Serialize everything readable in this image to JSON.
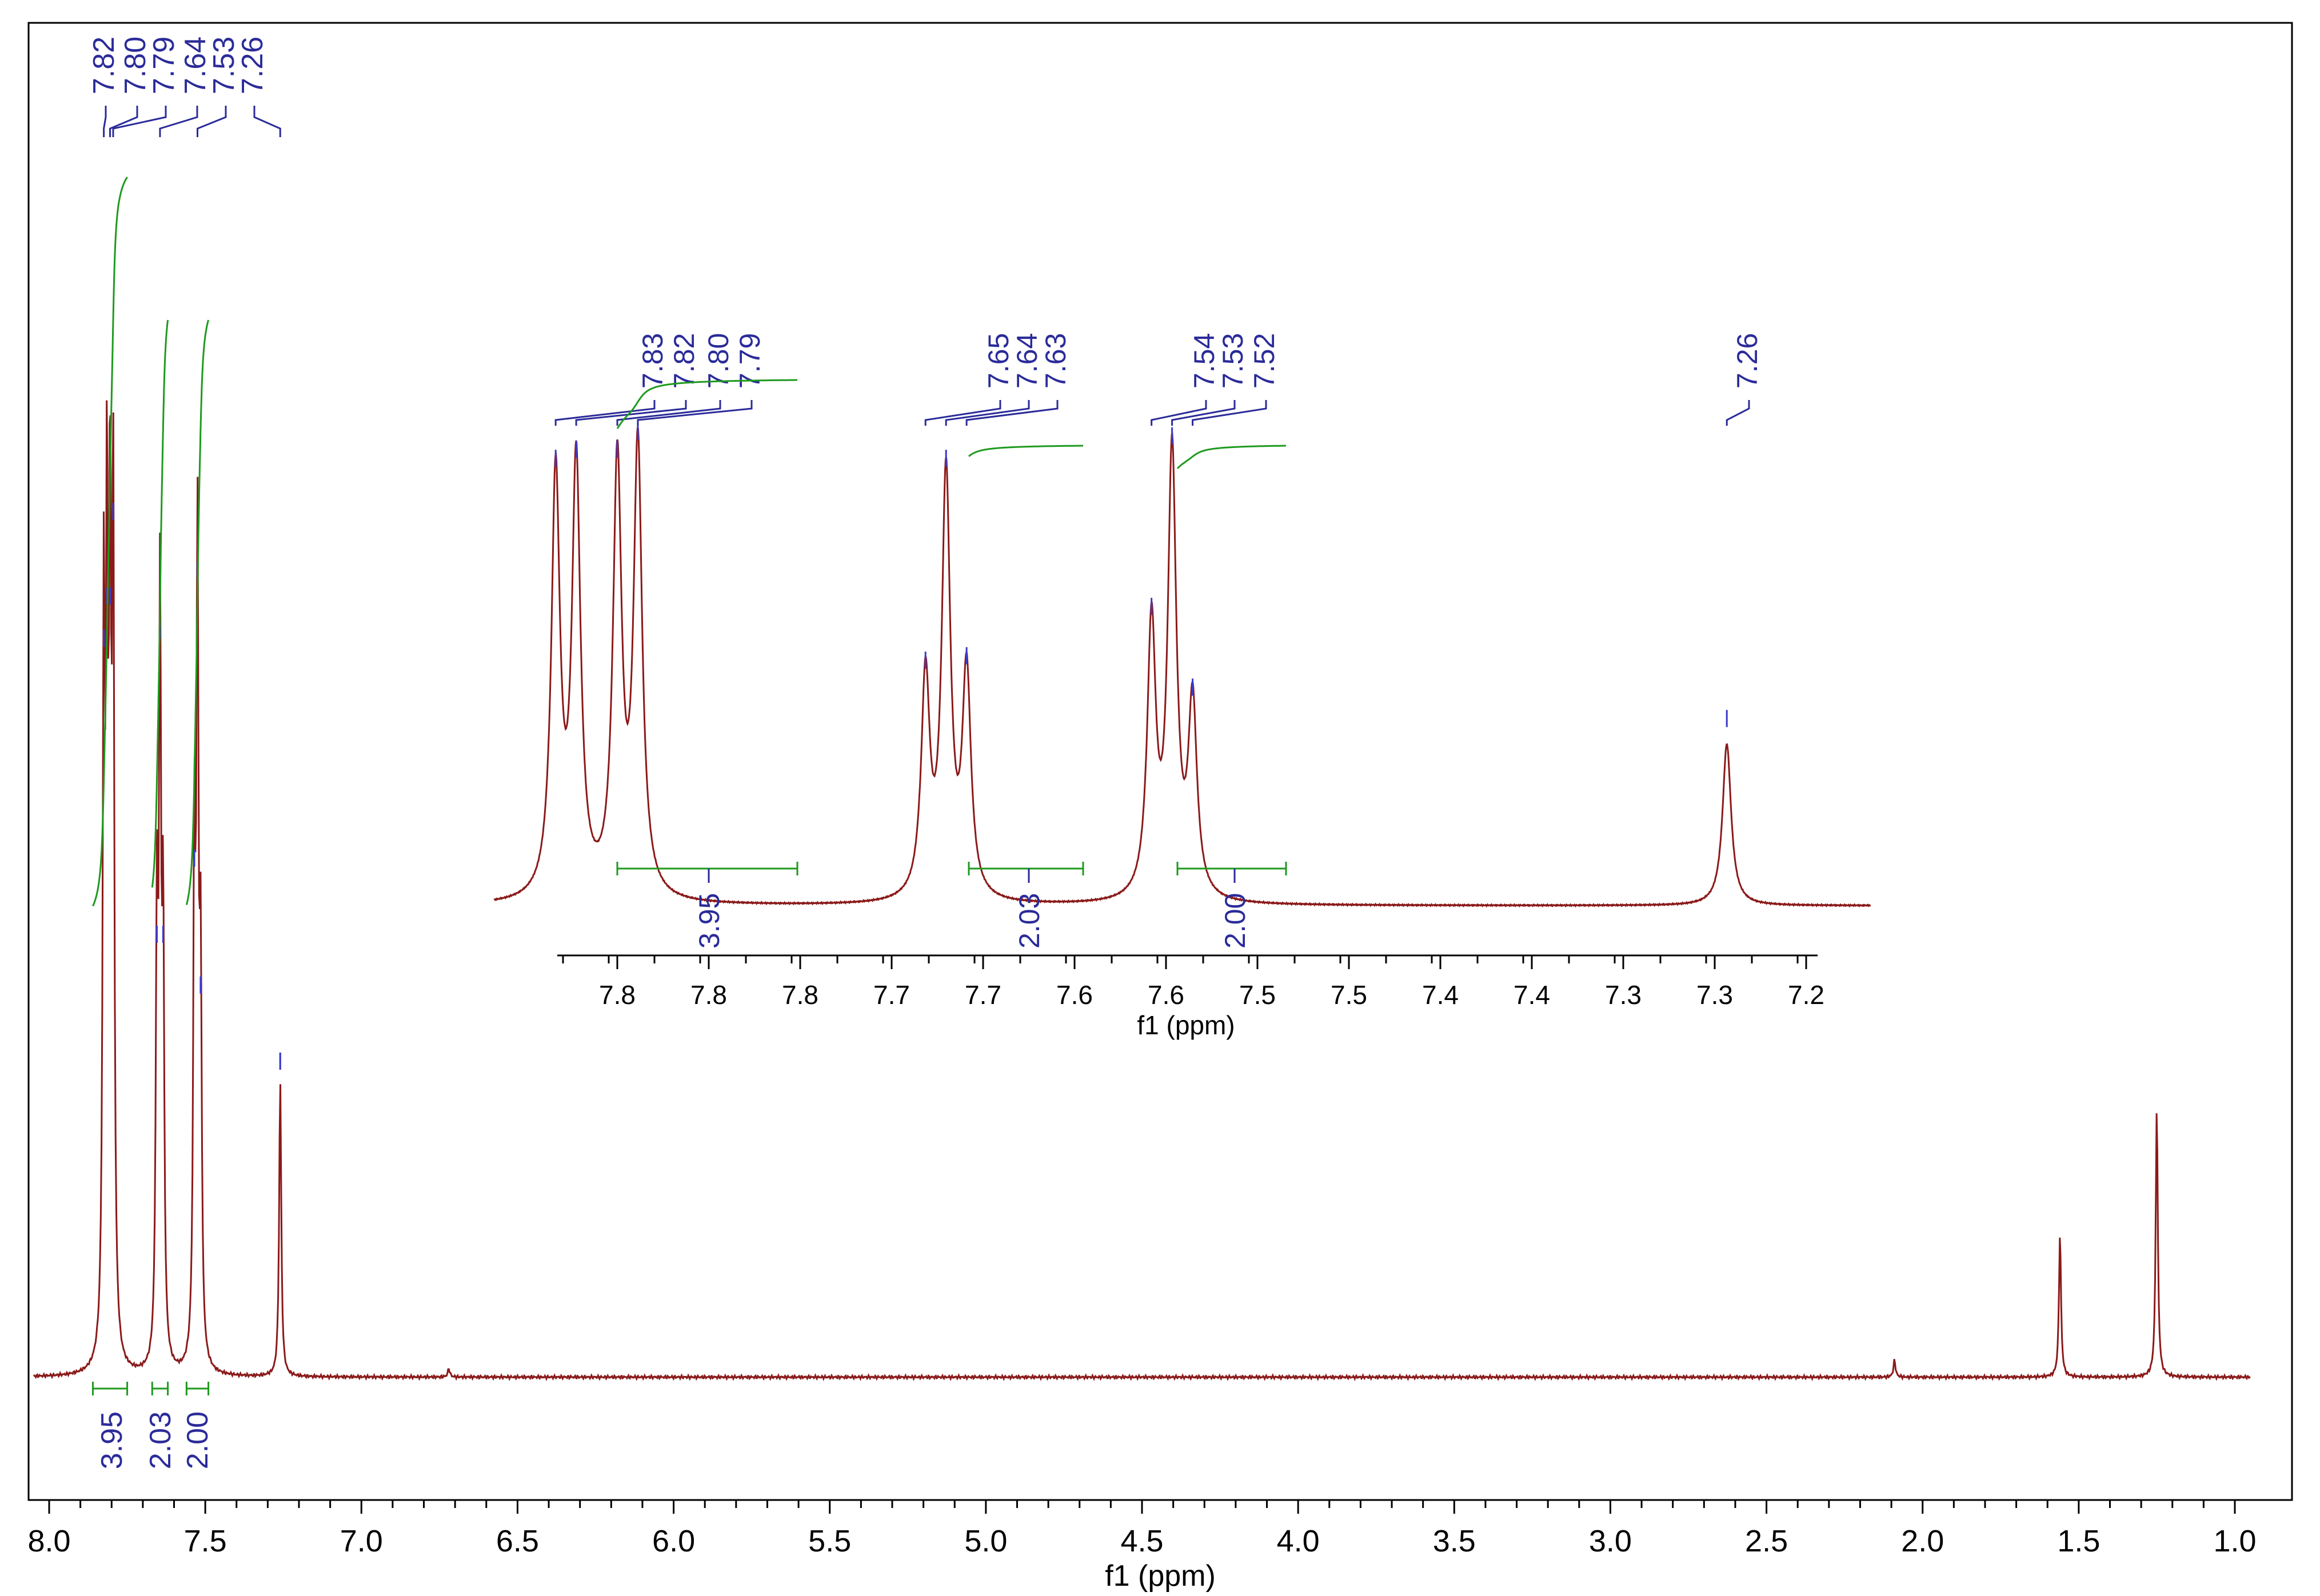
{
  "chart_data": [
    {
      "type": "line",
      "panel": "main",
      "xlabel": "f1 (ppm)",
      "xlim": [
        8.0,
        1.0
      ],
      "x_ticks": [
        "8.0",
        "7.5",
        "7.0",
        "6.5",
        "6.0",
        "5.5",
        "5.0",
        "4.5",
        "4.0",
        "3.5",
        "3.0",
        "2.5",
        "2.0",
        "1.5",
        "1.0"
      ],
      "series": [
        {
          "peaks": [
            {
              "x": 7.825,
              "y": 0.85
            },
            {
              "x": 7.815,
              "y": 0.9
            },
            {
              "x": 7.805,
              "y": 0.9
            },
            {
              "x": 7.795,
              "y": 1.0
            },
            {
              "x": 7.655,
              "y": 0.5
            },
            {
              "x": 7.645,
              "y": 0.86
            },
            {
              "x": 7.635,
              "y": 0.5
            },
            {
              "x": 7.535,
              "y": 0.59
            },
            {
              "x": 7.525,
              "y": 0.93
            },
            {
              "x": 7.515,
              "y": 0.44
            },
            {
              "x": 7.26,
              "y": 0.35
            },
            {
              "x": 6.72,
              "y": 0.01
            },
            {
              "x": 2.09,
              "y": 0.02
            },
            {
              "x": 1.56,
              "y": 0.17
            },
            {
              "x": 1.25,
              "y": 0.32
            }
          ]
        }
      ],
      "peak_labels": [
        "7.82",
        "7.80",
        "7.79",
        "7.64",
        "7.53",
        "7.26"
      ],
      "integrals": [
        {
          "value": "3.95",
          "from": 7.86,
          "to": 7.75
        },
        {
          "value": "2.03",
          "from": 7.67,
          "to": 7.62
        },
        {
          "value": "2.00",
          "from": 7.56,
          "to": 7.49
        }
      ]
    },
    {
      "type": "line",
      "panel": "inset",
      "xlabel": "f1 (ppm)",
      "x_ticks": [
        "7.8",
        "7.8",
        "7.8",
        "7.7",
        "7.7",
        "7.6",
        "7.6",
        "7.5",
        "7.5",
        "7.4",
        "7.4",
        "7.3",
        "7.3",
        "7.2"
      ],
      "series": [
        {
          "peaks": [
            {
              "x": 7.83,
              "y": 0.94
            },
            {
              "x": 7.82,
              "y": 0.96
            },
            {
              "x": 7.8,
              "y": 0.96
            },
            {
              "x": 7.79,
              "y": 1.0
            },
            {
              "x": 7.65,
              "y": 0.49
            },
            {
              "x": 7.64,
              "y": 0.94
            },
            {
              "x": 7.63,
              "y": 0.5
            },
            {
              "x": 7.54,
              "y": 0.61
            },
            {
              "x": 7.53,
              "y": 0.99
            },
            {
              "x": 7.52,
              "y": 0.43
            },
            {
              "x": 7.26,
              "y": 0.36
            }
          ]
        }
      ],
      "peak_labels": [
        "7.83",
        "7.82",
        "7.80",
        "7.79",
        "7.65",
        "7.64",
        "7.63",
        "7.54",
        "7.53",
        "7.52",
        "7.26"
      ],
      "integrals": [
        {
          "value": "3.95",
          "from": 7.85,
          "to": 7.76
        },
        {
          "value": "2.03",
          "from": 7.67,
          "to": 7.61
        },
        {
          "value": "2.00",
          "from": 7.56,
          "to": 7.5
        }
      ]
    }
  ],
  "colors": {
    "spectrum": "#8b1a1a",
    "peak_label": "#2b2b9a",
    "integral": "#1e9a1e",
    "axis": "#000000"
  }
}
